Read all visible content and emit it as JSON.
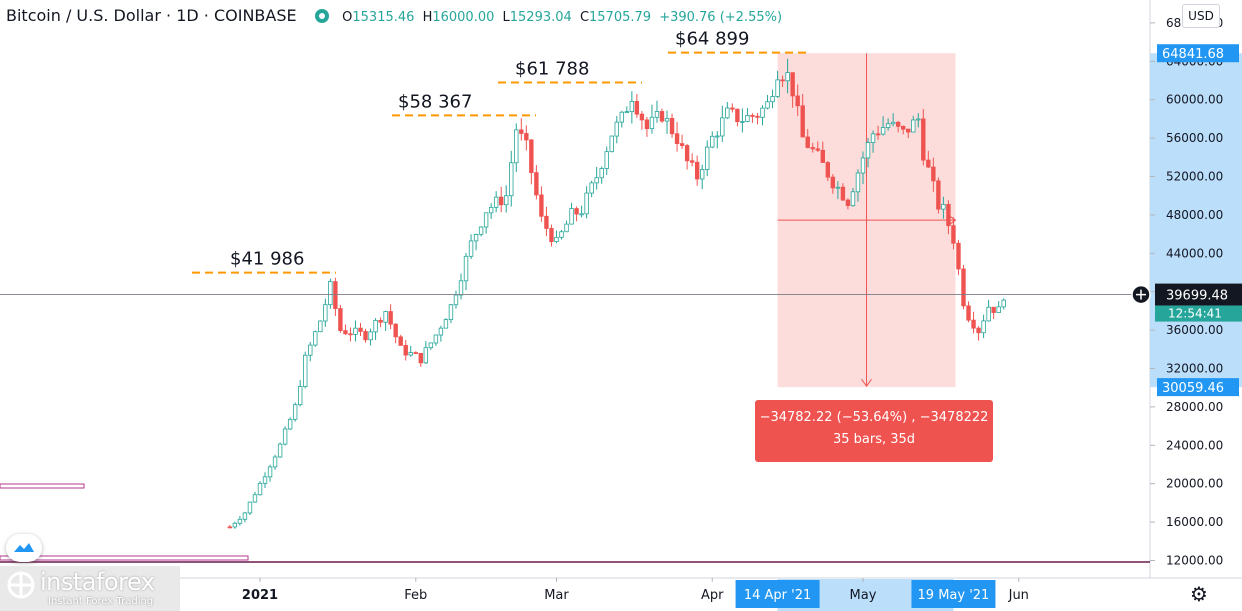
{
  "header": {
    "title": "Bitcoin / U.S. Dollar · 1D · COINBASE",
    "open": "15315.46",
    "high": "16000.00",
    "low": "15293.04",
    "close": "15705.79",
    "change": "+390.76 (+2.55%)",
    "labels": {
      "o": "O",
      "h": "H",
      "l": "L",
      "c": "C"
    }
  },
  "currency_button": "USD",
  "colors": {
    "up": "#26a69a",
    "down": "#ef5350",
    "annotation": "#ff9800",
    "measure_fill": "#fcd9d8",
    "axis_highlight": "#2196f3",
    "price_axis_range": "#bbdefb"
  },
  "price_axis": {
    "ticks": [
      "68000.00",
      "64000.00",
      "60000.00",
      "56000.00",
      "52000.00",
      "48000.00",
      "44000.00",
      "40000.00",
      "36000.00",
      "32000.00",
      "28000.00",
      "24000.00",
      "20000.00",
      "16000.00",
      "12000.00"
    ],
    "label_top": "64841.68",
    "label_current": "39699.48",
    "label_countdown": "12:54:41",
    "label_bottom": "30059.46"
  },
  "time_axis": {
    "labels": [
      "2021",
      "Feb",
      "Mar",
      "Apr",
      "May",
      "Jun"
    ],
    "highlight_start": "14 Apr '21",
    "highlight_end": "19 May '21"
  },
  "annotations": [
    "$41 986",
    "$58 367",
    "$61 788",
    "$64 899"
  ],
  "measure": {
    "line1": "−34782.22 (−53.64%) , −3478222",
    "line2": "35 bars, 35d"
  },
  "logo": {
    "name": "instaforex",
    "tagline": "Instant Forex Trading"
  },
  "chart_data": {
    "type": "candlestick",
    "title": "Bitcoin / U.S. Dollar · 1D · COINBASE",
    "ylim": [
      12000,
      68000
    ],
    "grid": false,
    "price_path": [
      [
        "2020-12-26",
        15500
      ],
      [
        "2020-12-29",
        17000
      ],
      [
        "2020-12-31",
        19000
      ],
      [
        "2021-01-02",
        21000
      ],
      [
        "2021-01-05",
        24000
      ],
      [
        "2021-01-08",
        28000
      ],
      [
        "2021-01-10",
        33000
      ],
      [
        "2021-01-13",
        37000
      ],
      [
        "2021-01-15",
        40500
      ],
      [
        "2021-01-17",
        36000
      ],
      [
        "2021-01-22",
        35500
      ],
      [
        "2021-01-26",
        38000
      ],
      [
        "2021-01-29",
        34000
      ],
      [
        "2021-02-02",
        33000
      ],
      [
        "2021-02-05",
        35500
      ],
      [
        "2021-02-08",
        38500
      ],
      [
        "2021-02-12",
        45000
      ],
      [
        "2021-02-15",
        48500
      ],
      [
        "2021-02-19",
        50000
      ],
      [
        "2021-02-21",
        57000
      ],
      [
        "2021-02-23",
        55000
      ],
      [
        "2021-02-26",
        47500
      ],
      [
        "2021-03-01",
        45000
      ],
      [
        "2021-03-04",
        48000
      ],
      [
        "2021-03-06",
        48500
      ],
      [
        "2021-03-09",
        52000
      ],
      [
        "2021-03-12",
        56500
      ],
      [
        "2021-03-14",
        58000
      ],
      [
        "2021-03-16",
        60500
      ],
      [
        "2021-03-19",
        57000
      ],
      [
        "2021-03-22",
        58500
      ],
      [
        "2021-03-25",
        56000
      ],
      [
        "2021-03-27",
        53500
      ],
      [
        "2021-03-29",
        52000
      ],
      [
        "2021-04-01",
        56000
      ],
      [
        "2021-04-04",
        58500
      ],
      [
        "2021-04-07",
        58000
      ],
      [
        "2021-04-10",
        58500
      ],
      [
        "2021-04-12",
        59500
      ],
      [
        "2021-04-14",
        63000
      ],
      [
        "2021-04-16",
        62500
      ],
      [
        "2021-04-17",
        61000
      ],
      [
        "2021-04-19",
        56000
      ],
      [
        "2021-04-22",
        54000
      ],
      [
        "2021-04-25",
        51500
      ],
      [
        "2021-04-28",
        49500
      ],
      [
        "2021-05-01",
        54000
      ],
      [
        "2021-05-03",
        56500
      ],
      [
        "2021-05-06",
        57500
      ],
      [
        "2021-05-09",
        56500
      ],
      [
        "2021-05-12",
        58000
      ],
      [
        "2021-05-13",
        54500
      ],
      [
        "2021-05-16",
        49000
      ],
      [
        "2021-05-17",
        48500
      ],
      [
        "2021-05-19",
        45500
      ],
      [
        "2021-05-21",
        39000
      ],
      [
        "2021-05-22",
        37500
      ],
      [
        "2021-05-24",
        36000
      ],
      [
        "2021-05-26",
        38500
      ],
      [
        "2021-05-28",
        38000
      ],
      [
        "2021-05-29",
        39700
      ]
    ],
    "price_levels": [
      41986,
      58367,
      61788,
      64899
    ],
    "current_price": 39699.48,
    "measure_range": {
      "from_date": "2021-04-14",
      "to_date": "2021-05-19",
      "high": 64841.68,
      "low": 30059.46
    }
  }
}
